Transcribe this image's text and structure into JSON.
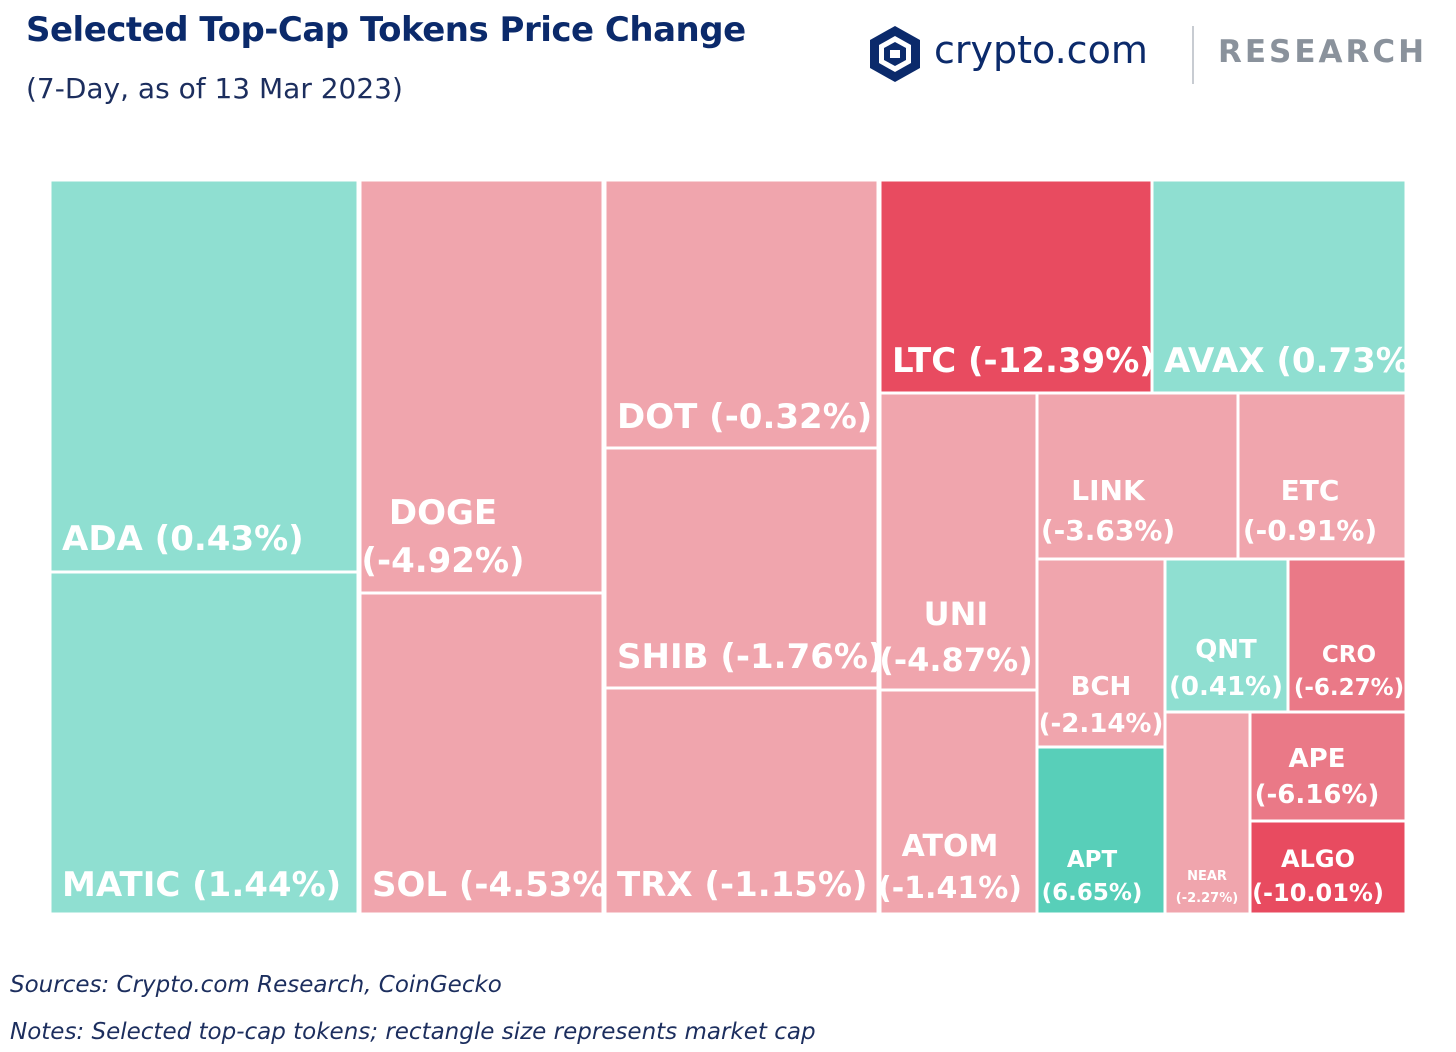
{
  "header": {
    "title": "Selected Top-Cap Tokens Price Change",
    "subtitle": "(7-Day, as of 13 Mar 2023)"
  },
  "brand": {
    "logo_icon": "crypto-com-shield-icon",
    "name": "crypto.com",
    "section": "RESEARCH",
    "brand_color": "#0b2a6b"
  },
  "colors": {
    "positive_light": "#8fdfd1",
    "positive_strong": "#58cfb9",
    "negative_light": "#f0a5ad",
    "negative_mid": "#ea7987",
    "negative_strong": "#e84b60",
    "label_text": "#ffffff"
  },
  "chart_data": {
    "type": "treemap",
    "title": "Selected Top-Cap Tokens Price Change",
    "subtitle": "(7-Day, as of 13 Mar 2023)",
    "value_label": "7-day price change (%)",
    "size_label": "market cap",
    "items": [
      {
        "token": "ADA",
        "change": 0.43,
        "label": "ADA (0.43%)"
      },
      {
        "token": "MATIC",
        "change": 1.44,
        "label": "MATIC (1.44%)"
      },
      {
        "token": "DOGE",
        "change": -4.92,
        "label": "DOGE\n(-4.92%)"
      },
      {
        "token": "SOL",
        "change": -4.53,
        "label": "SOL (-4.53%)"
      },
      {
        "token": "DOT",
        "change": -0.32,
        "label": "DOT (-0.32%)"
      },
      {
        "token": "SHIB",
        "change": -1.76,
        "label": "SHIB (-1.76%)"
      },
      {
        "token": "TRX",
        "change": -1.15,
        "label": "TRX (-1.15%)"
      },
      {
        "token": "LTC",
        "change": -12.39,
        "label": "LTC (-12.39%)"
      },
      {
        "token": "AVAX",
        "change": 0.73,
        "label": "AVAX (0.73%)"
      },
      {
        "token": "UNI",
        "change": -4.87,
        "label": "UNI\n(-4.87%)"
      },
      {
        "token": "ATOM",
        "change": -1.41,
        "label": "ATOM\n(-1.41%)"
      },
      {
        "token": "LINK",
        "change": -3.63,
        "label": "LINK\n(-3.63%)"
      },
      {
        "token": "ETC",
        "change": -0.91,
        "label": "ETC\n(-0.91%)"
      },
      {
        "token": "BCH",
        "change": -2.14,
        "label": "BCH\n(-2.14%)"
      },
      {
        "token": "APT",
        "change": 6.65,
        "label": "APT\n(6.65%)"
      },
      {
        "token": "QNT",
        "change": 0.41,
        "label": "QNT\n(0.41%)"
      },
      {
        "token": "CRO",
        "change": -6.27,
        "label": "CRO\n(-6.27%)"
      },
      {
        "token": "NEAR",
        "change": -2.27,
        "label": "NEAR\n(-2.27%)"
      },
      {
        "token": "APE",
        "change": -6.16,
        "label": "APE\n(-6.16%)"
      },
      {
        "token": "ALGO",
        "change": -10.01,
        "label": "ALGO\n(-10.01%)"
      }
    ]
  },
  "footer": {
    "sources": "Sources: Crypto.com Research, CoinGecko",
    "notes": "Notes: Selected top-cap tokens; rectangle size represents market cap"
  }
}
